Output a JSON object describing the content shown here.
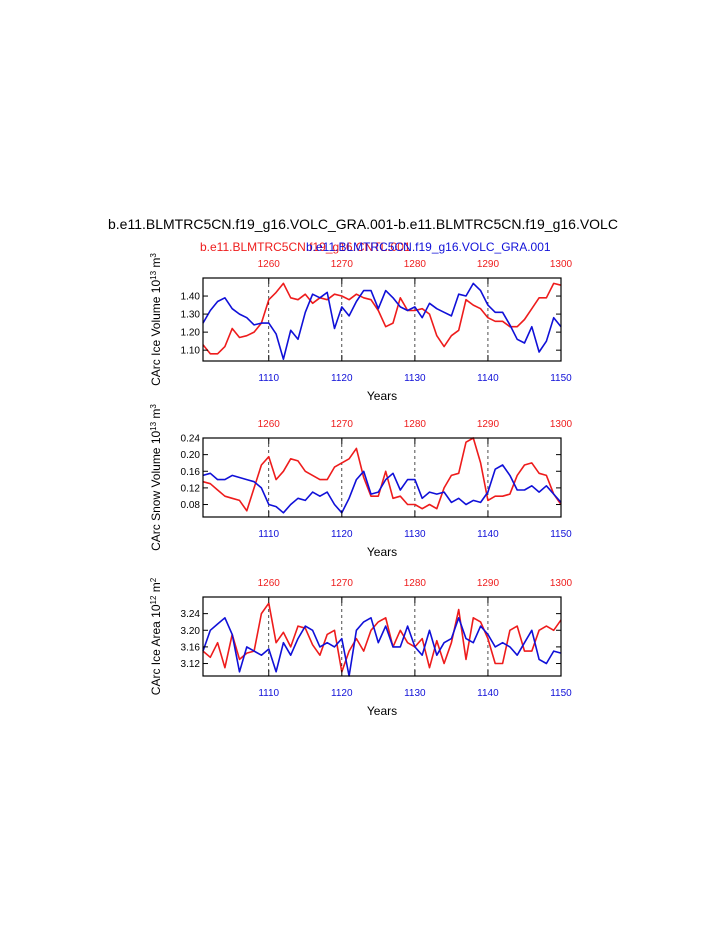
{
  "title": "b.e11.BLMTRC5CN.f19_g16.VOLC_GRA.001-b.e11.BLMTRC5CN.f19_g16.VOLC",
  "subtitle_red": "b.e11.BLMTRC5CN.f19_g16.CNTL.001",
  "subtitle_blue": "b.e11.BLMTRC5CN.f19_g16.VOLC_GRA.001",
  "colors": {
    "red": "#ee1c1c",
    "blue": "#1010d8"
  },
  "chart_data": [
    {
      "type": "line",
      "ylabel": "CArc Ice Volume 10^13 m^3",
      "xlabel": "Years",
      "ylim": [
        1.04,
        1.5
      ],
      "yticks": [
        "1.10",
        "1.20",
        "1.30",
        "1.40"
      ],
      "bottom_axis_ticks": [
        "1110",
        "1120",
        "1130",
        "1140",
        "1150"
      ],
      "top_axis_ticks": [
        "1260",
        "1270",
        "1280",
        "1290",
        "1300"
      ],
      "x_bottom_range": [
        1101,
        1150
      ],
      "x_top_range": [
        1251,
        1300
      ],
      "series": [
        {
          "values": [
            1.13,
            1.08,
            1.08,
            1.12,
            1.22,
            1.17,
            1.18,
            1.2,
            1.25,
            1.38,
            1.42,
            1.47,
            1.39,
            1.38,
            1.41,
            1.36,
            1.39,
            1.38,
            1.41,
            1.4,
            1.38,
            1.41,
            1.39,
            1.38,
            1.32,
            1.23,
            1.25,
            1.39,
            1.32,
            1.32,
            1.33,
            1.3,
            1.18,
            1.12,
            1.18,
            1.21,
            1.38,
            1.35,
            1.33,
            1.28,
            1.26,
            1.26,
            1.23,
            1.23,
            1.27,
            1.33,
            1.39,
            1.39,
            1.47,
            1.46
          ]
        },
        {
          "values": [
            1.25,
            1.32,
            1.37,
            1.39,
            1.33,
            1.3,
            1.28,
            1.24,
            1.25,
            1.25,
            1.19,
            1.05,
            1.21,
            1.16,
            1.31,
            1.41,
            1.39,
            1.42,
            1.22,
            1.34,
            1.29,
            1.37,
            1.43,
            1.43,
            1.33,
            1.43,
            1.39,
            1.34,
            1.32,
            1.34,
            1.28,
            1.36,
            1.33,
            1.31,
            1.29,
            1.41,
            1.4,
            1.47,
            1.43,
            1.35,
            1.31,
            1.31,
            1.24,
            1.16,
            1.14,
            1.23,
            1.09,
            1.15,
            1.28,
            1.23
          ]
        }
      ]
    },
    {
      "type": "line",
      "ylabel": "CArc Snow Volume 10^13 m^3",
      "xlabel": "Years",
      "ylim": [
        0.05,
        0.24
      ],
      "yticks": [
        "0.08",
        "0.12",
        "0.16",
        "0.20",
        "0.24"
      ],
      "bottom_axis_ticks": [
        "1110",
        "1120",
        "1130",
        "1140",
        "1150"
      ],
      "top_axis_ticks": [
        "1260",
        "1270",
        "1280",
        "1290",
        "1300"
      ],
      "x_bottom_range": [
        1101,
        1150
      ],
      "x_top_range": [
        1251,
        1300
      ],
      "series": [
        {
          "values": [
            0.135,
            0.13,
            0.115,
            0.1,
            0.095,
            0.09,
            0.065,
            0.12,
            0.175,
            0.195,
            0.14,
            0.16,
            0.19,
            0.185,
            0.16,
            0.15,
            0.14,
            0.14,
            0.17,
            0.18,
            0.19,
            0.215,
            0.145,
            0.1,
            0.1,
            0.16,
            0.095,
            0.1,
            0.08,
            0.08,
            0.07,
            0.08,
            0.07,
            0.12,
            0.15,
            0.155,
            0.23,
            0.24,
            0.18,
            0.09,
            0.1,
            0.1,
            0.105,
            0.15,
            0.175,
            0.18,
            0.155,
            0.15,
            0.105,
            0.08
          ]
        },
        {
          "values": [
            0.15,
            0.155,
            0.14,
            0.14,
            0.15,
            0.145,
            0.14,
            0.135,
            0.12,
            0.08,
            0.075,
            0.06,
            0.08,
            0.095,
            0.09,
            0.11,
            0.1,
            0.11,
            0.08,
            0.06,
            0.095,
            0.14,
            0.16,
            0.105,
            0.11,
            0.14,
            0.155,
            0.115,
            0.14,
            0.14,
            0.095,
            0.11,
            0.105,
            0.11,
            0.085,
            0.095,
            0.08,
            0.09,
            0.085,
            0.11,
            0.165,
            0.175,
            0.15,
            0.115,
            0.115,
            0.125,
            0.11,
            0.125,
            0.105,
            0.085
          ]
        }
      ]
    },
    {
      "type": "line",
      "ylabel": "CArc Ice Area 10^12 m^2",
      "xlabel": "Years",
      "ylim": [
        3.09,
        3.28
      ],
      "yticks": [
        "3.12",
        "3.16",
        "3.20",
        "3.24"
      ],
      "bottom_axis_ticks": [
        "1110",
        "1120",
        "1130",
        "1140",
        "1150"
      ],
      "top_axis_ticks": [
        "1260",
        "1270",
        "1280",
        "1290",
        "1300"
      ],
      "x_bottom_range": [
        1101,
        1150
      ],
      "x_top_range": [
        1251,
        1300
      ],
      "series": [
        {
          "values": [
            3.15,
            3.135,
            3.17,
            3.11,
            3.19,
            3.13,
            3.145,
            3.15,
            3.24,
            3.265,
            3.17,
            3.195,
            3.16,
            3.21,
            3.205,
            3.165,
            3.14,
            3.19,
            3.2,
            3.1,
            3.15,
            3.18,
            3.15,
            3.2,
            3.22,
            3.23,
            3.16,
            3.2,
            3.17,
            3.16,
            3.18,
            3.11,
            3.175,
            3.12,
            3.17,
            3.25,
            3.13,
            3.23,
            3.22,
            3.18,
            3.12,
            3.12,
            3.2,
            3.21,
            3.15,
            3.15,
            3.2,
            3.21,
            3.2,
            3.225
          ]
        },
        {
          "values": [
            3.15,
            3.2,
            3.215,
            3.23,
            3.19,
            3.1,
            3.16,
            3.15,
            3.14,
            3.155,
            3.1,
            3.17,
            3.14,
            3.18,
            3.21,
            3.2,
            3.16,
            3.17,
            3.16,
            3.18,
            3.09,
            3.2,
            3.22,
            3.23,
            3.17,
            3.21,
            3.16,
            3.16,
            3.21,
            3.16,
            3.14,
            3.2,
            3.14,
            3.17,
            3.18,
            3.23,
            3.18,
            3.17,
            3.21,
            3.19,
            3.16,
            3.17,
            3.16,
            3.14,
            3.17,
            3.2,
            3.13,
            3.12,
            3.15,
            3.145
          ]
        }
      ]
    }
  ]
}
